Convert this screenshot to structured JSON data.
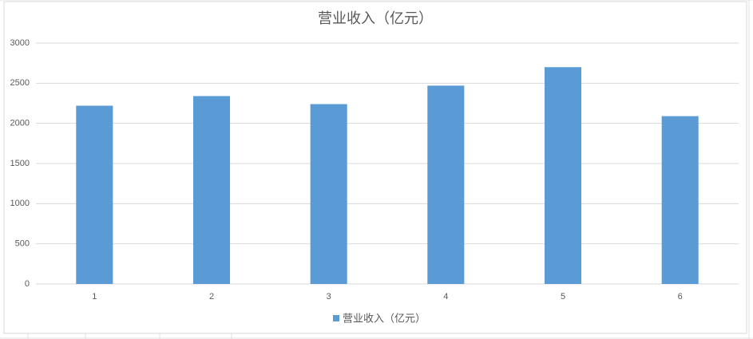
{
  "chart_data": {
    "type": "bar",
    "title": "营业收入（亿元）",
    "categories": [
      "1",
      "2",
      "3",
      "4",
      "5",
      "6"
    ],
    "series": [
      {
        "name": "营业收入（亿元）",
        "color": "#5b9bd5",
        "values": [
          2220,
          2340,
          2240,
          2470,
          2700,
          2090
        ]
      }
    ],
    "ylim": [
      0,
      3000
    ],
    "yticks": [
      0,
      500,
      1000,
      1500,
      2000,
      2500,
      3000
    ],
    "grid": true,
    "legend": "bottom"
  }
}
